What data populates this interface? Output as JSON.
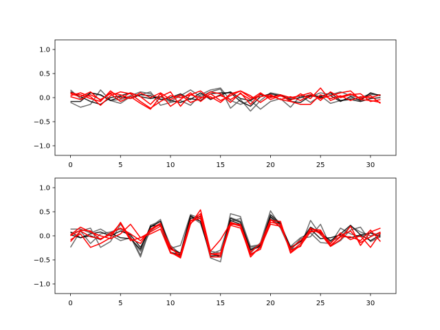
{
  "chart_data": [
    {
      "type": "line",
      "title": "",
      "xlabel": "",
      "ylabel": "",
      "xlim": [
        -1.55,
        32.55
      ],
      "ylim": [
        -1.2,
        1.2
      ],
      "xticks": [
        0,
        5,
        10,
        15,
        20,
        25,
        30
      ],
      "yticks": [
        -1.0,
        -0.5,
        0.0,
        0.5,
        1.0
      ],
      "ytick_labels": [
        "−1.0",
        "−0.5",
        "0.0",
        "0.5",
        "1.0"
      ],
      "grid": false,
      "colors": {
        "black": "#000000",
        "gray": "#555555",
        "red": "#ff0000"
      },
      "series": [
        {
          "color": "#555555",
          "values": [
            0.16,
            -0.02,
            0.1,
            0.05,
            -0.06,
            -0.04,
            0.04,
            0.12,
            0.08,
            -0.03,
            -0.08,
            0.04,
            0.16,
            0.02,
            0.12,
            0.18,
            -0.22,
            -0.04,
            -0.28,
            -0.06,
            0.1,
            0.06,
            -0.02,
            0.04,
            0.02,
            0.1,
            0.06,
            0.12,
            0.04,
            0.0,
            0.08,
            0.04
          ]
        },
        {
          "color": "#555555",
          "values": [
            -0.1,
            -0.2,
            -0.14,
            0.16,
            -0.06,
            -0.12,
            0.02,
            0.06,
            0.12,
            -0.16,
            -0.1,
            -0.06,
            -0.16,
            0.06,
            0.16,
            0.2,
            -0.06,
            -0.14,
            -0.06,
            -0.24,
            -0.08,
            -0.02,
            -0.2,
            0.04,
            -0.1,
            0.04,
            -0.12,
            -0.06,
            -0.02,
            -0.04,
            0.06,
            0.06
          ]
        },
        {
          "color": "#000000",
          "values": [
            0.12,
            0.02,
            -0.08,
            -0.14,
            0.0,
            0.04,
            0.1,
            0.02,
            -0.02,
            0.02,
            -0.06,
            -0.1,
            -0.02,
            -0.06,
            0.08,
            0.1,
            0.1,
            -0.08,
            -0.18,
            0.02,
            0.08,
            0.04,
            -0.04,
            0.0,
            0.06,
            0.02,
            0.1,
            -0.06,
            -0.04,
            -0.08,
            -0.02,
            0.0
          ]
        },
        {
          "color": "#000000",
          "values": [
            -0.08,
            -0.08,
            0.1,
            0.06,
            -0.06,
            0.02,
            -0.02,
            0.06,
            0.04,
            -0.04,
            0.0,
            0.08,
            -0.04,
            0.1,
            -0.04,
            0.06,
            0.12,
            -0.02,
            -0.06,
            0.06,
            0.02,
            0.06,
            -0.08,
            -0.1,
            0.04,
            0.0,
            0.04,
            -0.08,
            0.02,
            -0.06,
            0.1,
            0.04
          ]
        },
        {
          "color": "#ff0000",
          "values": [
            0.1,
            0.06,
            -0.02,
            -0.08,
            0.14,
            -0.02,
            0.1,
            0.02,
            -0.14,
            0.08,
            -0.18,
            -0.04,
            0.1,
            -0.08,
            0.08,
            -0.06,
            0.04,
            0.14,
            0.04,
            -0.1,
            0.04,
            -0.04,
            0.02,
            -0.06,
            0.06,
            -0.02,
            0.04,
            0.1,
            0.14,
            -0.04,
            -0.06,
            -0.1
          ]
        },
        {
          "color": "#ff0000",
          "values": [
            0.04,
            0.1,
            0.02,
            -0.16,
            0.04,
            0.12,
            0.08,
            -0.08,
            -0.22,
            -0.08,
            0.04,
            0.0,
            0.06,
            0.14,
            -0.02,
            0.04,
            -0.04,
            0.08,
            -0.04,
            0.1,
            -0.04,
            0.04,
            -0.06,
            0.08,
            -0.02,
            0.2,
            -0.06,
            0.02,
            0.08,
            -0.02,
            0.04,
            -0.12
          ]
        },
        {
          "color": "#ff0000",
          "values": [
            0.02,
            -0.04,
            0.06,
            -0.04,
            0.08,
            -0.08,
            0.02,
            -0.12,
            -0.24,
            0.02,
            0.12,
            -0.18,
            0.06,
            0.0,
            0.02,
            -0.1,
            0.08,
            0.14,
            0.0,
            0.02,
            0.06,
            -0.04,
            -0.08,
            -0.14,
            -0.14,
            0.06,
            -0.02,
            0.04,
            -0.06,
            0.02,
            0.0,
            0.06
          ]
        },
        {
          "color": "#ff0000",
          "values": [
            0.08,
            0.02,
            0.12,
            -0.06,
            0.1,
            0.06,
            -0.02,
            0.1,
            0.0,
            0.1,
            -0.04,
            0.06,
            -0.1,
            -0.02,
            0.12,
            0.08,
            -0.1,
            0.1,
            -0.14,
            0.08,
            0.0,
            0.06,
            0.0,
            0.04,
            0.1,
            -0.06,
            0.12,
            0.0,
            0.06,
            0.08,
            -0.08,
            -0.04
          ]
        }
      ]
    },
    {
      "type": "line",
      "title": "",
      "xlabel": "",
      "ylabel": "",
      "xlim": [
        -1.55,
        32.55
      ],
      "ylim": [
        -1.2,
        1.2
      ],
      "xticks": [
        0,
        5,
        10,
        15,
        20,
        25,
        30
      ],
      "yticks": [
        -1.0,
        -0.5,
        0.0,
        0.5,
        1.0
      ],
      "ytick_labels": [
        "−1.0",
        "−0.5",
        "0.0",
        "0.5",
        "1.0"
      ],
      "grid": false,
      "colors": {
        "black": "#000000",
        "gray": "#555555",
        "red": "#ff0000"
      },
      "series": [
        {
          "color": "#555555",
          "values": [
            -0.24,
            0.1,
            -0.16,
            0.04,
            0.08,
            0.14,
            -0.02,
            -0.44,
            0.18,
            0.34,
            -0.26,
            -0.2,
            0.44,
            0.36,
            -0.46,
            -0.54,
            0.46,
            0.4,
            -0.36,
            -0.14,
            0.52,
            0.2,
            -0.28,
            -0.22,
            0.32,
            0.02,
            -0.12,
            -0.02,
            0.2,
            0.08,
            0.0,
            0.06
          ]
        },
        {
          "color": "#555555",
          "values": [
            0.06,
            0.1,
            0.16,
            -0.24,
            -0.12,
            0.24,
            -0.02,
            -0.4,
            0.22,
            0.3,
            -0.2,
            -0.38,
            0.4,
            0.3,
            -0.32,
            -0.36,
            0.3,
            0.36,
            -0.22,
            -0.18,
            0.4,
            0.16,
            -0.3,
            -0.06,
            -0.02,
            0.24,
            -0.22,
            -0.1,
            0.12,
            0.18,
            -0.12,
            -0.02
          ]
        },
        {
          "color": "#555555",
          "values": [
            0.14,
            0.14,
            0.06,
            0.14,
            0.02,
            -0.1,
            -0.04,
            -0.32,
            0.1,
            0.26,
            -0.24,
            -0.44,
            0.4,
            0.26,
            -0.38,
            -0.3,
            0.38,
            0.3,
            -0.24,
            -0.2,
            0.36,
            0.22,
            -0.22,
            -0.04,
            0.06,
            -0.14,
            -0.16,
            0.16,
            0.04,
            -0.02,
            0.06,
            0.02
          ]
        },
        {
          "color": "#000000",
          "values": [
            0.08,
            -0.04,
            0.04,
            0.08,
            0.0,
            0.1,
            0.02,
            -0.24,
            0.18,
            0.3,
            -0.26,
            -0.36,
            0.42,
            0.3,
            -0.42,
            -0.4,
            0.36,
            0.28,
            -0.3,
            -0.22,
            0.4,
            0.24,
            -0.24,
            -0.12,
            0.18,
            0.06,
            -0.1,
            0.04,
            0.22,
            0.02,
            -0.1,
            0.02
          ]
        },
        {
          "color": "#000000",
          "values": [
            0.02,
            -0.04,
            0.0,
            -0.08,
            0.06,
            -0.04,
            -0.06,
            -0.28,
            0.2,
            0.22,
            -0.34,
            -0.4,
            0.36,
            0.4,
            -0.36,
            -0.44,
            0.32,
            0.24,
            -0.28,
            -0.2,
            0.44,
            0.26,
            -0.26,
            -0.12,
            0.14,
            -0.06,
            -0.04,
            0.02,
            -0.04,
            0.02,
            0.06,
            -0.02
          ]
        },
        {
          "color": "#ff0000",
          "values": [
            -0.08,
            0.04,
            -0.24,
            -0.16,
            -0.04,
            0.28,
            -0.06,
            -0.16,
            0.14,
            0.26,
            -0.34,
            -0.46,
            0.24,
            0.54,
            -0.32,
            -0.08,
            0.26,
            0.2,
            -0.44,
            -0.22,
            0.28,
            0.24,
            -0.34,
            -0.16,
            0.14,
            0.12,
            -0.2,
            -0.02,
            -0.02,
            -0.1,
            0.12,
            -0.12
          ]
        },
        {
          "color": "#ff0000",
          "values": [
            0.02,
            0.18,
            0.08,
            0.0,
            -0.06,
            0.04,
            0.24,
            -0.04,
            0.04,
            0.14,
            -0.36,
            -0.42,
            0.3,
            0.46,
            -0.38,
            -0.4,
            0.28,
            0.22,
            -0.38,
            -0.28,
            0.32,
            0.3,
            -0.36,
            -0.2,
            0.08,
            0.1,
            -0.22,
            -0.08,
            0.2,
            -0.2,
            0.08,
            0.16
          ]
        },
        {
          "color": "#ff0000",
          "values": [
            -0.12,
            0.1,
            -0.02,
            -0.06,
            0.02,
            0.26,
            -0.1,
            -0.04,
            0.08,
            0.2,
            -0.22,
            -0.46,
            0.26,
            0.42,
            -0.44,
            -0.44,
            0.22,
            0.16,
            -0.4,
            -0.24,
            0.24,
            0.2,
            -0.3,
            -0.22,
            0.16,
            0.04,
            -0.22,
            0.0,
            0.1,
            -0.14,
            -0.02,
            0.08
          ]
        },
        {
          "color": "#ff0000",
          "values": [
            0.0,
            0.12,
            0.1,
            -0.08,
            0.06,
            0.16,
            0.04,
            -0.1,
            0.12,
            0.24,
            -0.28,
            -0.38,
            0.32,
            0.36,
            -0.38,
            -0.36,
            0.24,
            0.24,
            -0.34,
            -0.16,
            0.34,
            0.18,
            -0.26,
            -0.1,
            0.1,
            0.08,
            -0.16,
            0.06,
            -0.08,
            0.0,
            -0.24,
            0.06
          ]
        }
      ]
    }
  ]
}
